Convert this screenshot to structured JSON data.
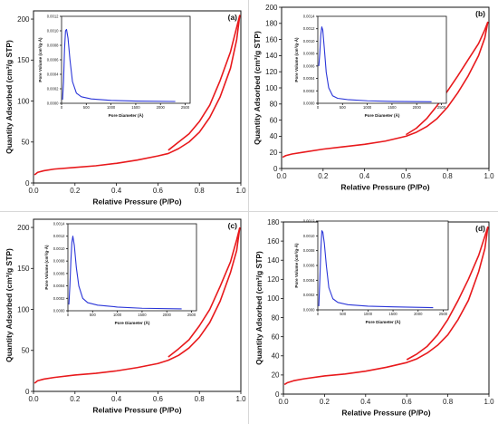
{
  "figure": {
    "panels": [
      {
        "id": "a"
      },
      {
        "id": "b"
      },
      {
        "id": "c"
      },
      {
        "id": "d"
      }
    ]
  },
  "colors": {
    "isotherm": "#e8191c",
    "psd": "#2a35d8",
    "axis": "#111111",
    "divider": "#d8d8d8"
  },
  "chart_data": [
    {
      "panel_label": "(a)",
      "type": "line",
      "xlabel": "Relative Pressure (P/Po)",
      "ylabel": "Quantity Adsorbed (cm³/g STP)",
      "xlim": [
        0,
        1.0
      ],
      "ylim": [
        0,
        210
      ],
      "xticks": [
        "0.0",
        "0.2",
        "0.4",
        "0.6",
        "0.8",
        "1.0"
      ],
      "yticks": [
        "0",
        "50",
        "100",
        "150",
        "200"
      ],
      "xtick_values": [
        0,
        0.2,
        0.4,
        0.6,
        0.8,
        1.0
      ],
      "ytick_values": [
        0,
        50,
        100,
        150,
        200
      ],
      "series": [
        {
          "values": [
            [
              0.005,
              10
            ],
            [
              0.02,
              13
            ],
            [
              0.05,
              15
            ],
            [
              0.1,
              17
            ],
            [
              0.2,
              19
            ],
            [
              0.3,
              21
            ],
            [
              0.4,
              24
            ],
            [
              0.5,
              28
            ],
            [
              0.6,
              33
            ],
            [
              0.65,
              36
            ],
            [
              0.7,
              42
            ],
            [
              0.75,
              50
            ],
            [
              0.8,
              62
            ],
            [
              0.85,
              80
            ],
            [
              0.9,
              105
            ],
            [
              0.95,
              140
            ],
            [
              0.98,
              175
            ],
            [
              0.995,
              205
            ]
          ]
        },
        {
          "values": [
            [
              0.995,
              205
            ],
            [
              0.98,
              190
            ],
            [
              0.95,
              160
            ],
            [
              0.9,
              125
            ],
            [
              0.85,
              95
            ],
            [
              0.8,
              75
            ],
            [
              0.75,
              60
            ],
            [
              0.7,
              50
            ],
            [
              0.65,
              40
            ]
          ]
        }
      ],
      "inset": {
        "type": "line",
        "xlabel": "Pore Diameter (Å)",
        "ylabel": "Pore Volume (cm³/g·Å)",
        "xlim": [
          0,
          2600
        ],
        "ylim": [
          0,
          0.0012
        ],
        "xticks": [
          "0",
          "500",
          "1000",
          "1500",
          "2000",
          "2500"
        ],
        "yticks": [
          "0.0000",
          "0.0002",
          "0.0004",
          "0.0006",
          "0.0008",
          "0.0010",
          "0.0012"
        ],
        "xtick_values": [
          0,
          500,
          1000,
          1500,
          2000,
          2500
        ],
        "ytick_values": [
          0,
          0.0002,
          0.0004,
          0.0006,
          0.0008,
          0.001,
          0.0012
        ],
        "series": [
          {
            "values": [
              [
                20,
                5e-05
              ],
              [
                40,
                0.0003
              ],
              [
                60,
                0.00075
              ],
              [
                80,
                0.001
              ],
              [
                100,
                0.00102
              ],
              [
                130,
                0.0009
              ],
              [
                170,
                0.0006
              ],
              [
                220,
                0.0003
              ],
              [
                300,
                0.00014
              ],
              [
                400,
                9e-05
              ],
              [
                600,
                6e-05
              ],
              [
                1000,
                4e-05
              ],
              [
                1500,
                3e-05
              ],
              [
                2300,
                2.5e-05
              ]
            ]
          }
        ]
      }
    },
    {
      "panel_label": "(b)",
      "type": "line",
      "xlabel": "Relative Pressure (P/Po)",
      "ylabel": "Quantity Adsorbed (cm³/g STP)",
      "xlim": [
        0,
        1.0
      ],
      "ylim": [
        0,
        200
      ],
      "xticks": [
        "0.0",
        "0.2",
        "0.4",
        "0.6",
        "0.8",
        "1.0"
      ],
      "yticks": [
        "0",
        "20",
        "40",
        "60",
        "80",
        "100",
        "120",
        "140",
        "160",
        "180",
        "200"
      ],
      "xtick_values": [
        0,
        0.2,
        0.4,
        0.6,
        0.8,
        1.0
      ],
      "ytick_values": [
        0,
        20,
        40,
        60,
        80,
        100,
        120,
        140,
        160,
        180,
        200
      ],
      "series": [
        {
          "values": [
            [
              0.005,
              14
            ],
            [
              0.02,
              16
            ],
            [
              0.05,
              18
            ],
            [
              0.1,
              20
            ],
            [
              0.2,
              24
            ],
            [
              0.3,
              27
            ],
            [
              0.4,
              30
            ],
            [
              0.5,
              34
            ],
            [
              0.6,
              40
            ],
            [
              0.65,
              45
            ],
            [
              0.7,
              52
            ],
            [
              0.75,
              62
            ],
            [
              0.8,
              76
            ],
            [
              0.85,
              94
            ],
            [
              0.9,
              115
            ],
            [
              0.95,
              140
            ],
            [
              0.98,
              162
            ],
            [
              0.995,
              182
            ]
          ]
        },
        {
          "values": [
            [
              0.995,
              182
            ],
            [
              0.98,
              172
            ],
            [
              0.95,
              155
            ],
            [
              0.9,
              135
            ],
            [
              0.85,
              115
            ],
            [
              0.8,
              96
            ],
            [
              0.75,
              78
            ],
            [
              0.7,
              62
            ],
            [
              0.65,
              50
            ],
            [
              0.6,
              42
            ]
          ]
        }
      ],
      "inset": {
        "type": "line",
        "xlabel": "Pore Diameter (Å)",
        "ylabel": "Pore Volume (cm³/g·Å)",
        "xlim": [
          0,
          2600
        ],
        "ylim": [
          0,
          0.0014
        ],
        "xticks": [
          "0",
          "500",
          "1000",
          "1500",
          "2000",
          "2500"
        ],
        "yticks": [
          "0.0000",
          "0.0002",
          "0.0004",
          "0.0006",
          "0.0008",
          "0.0010",
          "0.0012",
          "0.0014"
        ],
        "xtick_values": [
          0,
          500,
          1000,
          1500,
          2000,
          2500
        ],
        "ytick_values": [
          0,
          0.0002,
          0.0004,
          0.0006,
          0.0008,
          0.001,
          0.0012,
          0.0014
        ],
        "series": [
          {
            "values": [
              [
                20,
                0.0006
              ],
              [
                40,
                0.0008
              ],
              [
                60,
                0.0011
              ],
              [
                80,
                0.00123
              ],
              [
                100,
                0.00118
              ],
              [
                130,
                0.0009
              ],
              [
                170,
                0.0005
              ],
              [
                220,
                0.00025
              ],
              [
                300,
                0.00012
              ],
              [
                400,
                8e-05
              ],
              [
                600,
                6e-05
              ],
              [
                1000,
                4e-05
              ],
              [
                1500,
                3e-05
              ],
              [
                2300,
                2.5e-05
              ]
            ]
          }
        ]
      }
    },
    {
      "panel_label": "(c)",
      "type": "line",
      "xlabel": "Relative Pressure (P/Po)",
      "ylabel": "Quantity Adsorbed (cm³/g STP)",
      "xlim": [
        0,
        1.0
      ],
      "ylim": [
        0,
        210
      ],
      "xticks": [
        "0.0",
        "0.2",
        "0.4",
        "0.6",
        "0.8",
        "1.0"
      ],
      "yticks": [
        "0",
        "50",
        "100",
        "150",
        "200"
      ],
      "xtick_values": [
        0,
        0.2,
        0.4,
        0.6,
        0.8,
        1.0
      ],
      "ytick_values": [
        0,
        50,
        100,
        150,
        200
      ],
      "series": [
        {
          "values": [
            [
              0.005,
              10
            ],
            [
              0.02,
              13
            ],
            [
              0.05,
              15
            ],
            [
              0.1,
              17
            ],
            [
              0.2,
              20
            ],
            [
              0.3,
              22
            ],
            [
              0.4,
              25
            ],
            [
              0.5,
              29
            ],
            [
              0.6,
              34
            ],
            [
              0.65,
              38
            ],
            [
              0.7,
              44
            ],
            [
              0.75,
              53
            ],
            [
              0.8,
              66
            ],
            [
              0.85,
              84
            ],
            [
              0.9,
              110
            ],
            [
              0.95,
              145
            ],
            [
              0.98,
              172
            ],
            [
              0.995,
              200
            ]
          ]
        },
        {
          "values": [
            [
              0.995,
              200
            ],
            [
              0.98,
              185
            ],
            [
              0.95,
              158
            ],
            [
              0.9,
              128
            ],
            [
              0.85,
              100
            ],
            [
              0.8,
              80
            ],
            [
              0.75,
              63
            ],
            [
              0.7,
              52
            ],
            [
              0.65,
              42
            ]
          ]
        }
      ],
      "inset": {
        "type": "line",
        "xlabel": "Pore Diameter (Å)",
        "ylabel": "Pore Volume (cm³/g·Å)",
        "xlim": [
          0,
          2600
        ],
        "ylim": [
          0,
          0.0014
        ],
        "xticks": [
          "0",
          "500",
          "1000",
          "1500",
          "2000",
          "2500"
        ],
        "yticks": [
          "0.0000",
          "0.0002",
          "0.0004",
          "0.0006",
          "0.0008",
          "0.0010",
          "0.0012",
          "0.0014"
        ],
        "xtick_values": [
          0,
          500,
          1000,
          1500,
          2000,
          2500
        ],
        "ytick_values": [
          0,
          0.0002,
          0.0004,
          0.0006,
          0.0008,
          0.001,
          0.0012,
          0.0014
        ],
        "series": [
          {
            "values": [
              [
                20,
                0.0001
              ],
              [
                40,
                0.0004
              ],
              [
                60,
                0.0008
              ],
              [
                80,
                0.0011
              ],
              [
                100,
                0.0012
              ],
              [
                130,
                0.00105
              ],
              [
                170,
                0.0007
              ],
              [
                220,
                0.0004
              ],
              [
                300,
                0.0002
              ],
              [
                400,
                0.00013
              ],
              [
                600,
                9e-05
              ],
              [
                1000,
                6e-05
              ],
              [
                1500,
                4e-05
              ],
              [
                2300,
                3e-05
              ]
            ]
          }
        ]
      }
    },
    {
      "panel_label": "(d)",
      "type": "line",
      "xlabel": "Relative Pressure (P/Po)",
      "ylabel": "Quantity Adsorbed (cm³/g STP)",
      "xlim": [
        0,
        1.0
      ],
      "ylim": [
        0,
        180
      ],
      "xticks": [
        "0.0",
        "0.2",
        "0.4",
        "0.6",
        "0.8",
        "1.0"
      ],
      "yticks": [
        "0",
        "20",
        "40",
        "60",
        "80",
        "100",
        "120",
        "140",
        "160",
        "180"
      ],
      "xtick_values": [
        0,
        0.2,
        0.4,
        0.6,
        0.8,
        1.0
      ],
      "ytick_values": [
        0,
        20,
        40,
        60,
        80,
        100,
        120,
        140,
        160,
        180
      ],
      "series": [
        {
          "values": [
            [
              0.005,
              10
            ],
            [
              0.02,
              12
            ],
            [
              0.05,
              14
            ],
            [
              0.1,
              16
            ],
            [
              0.2,
              19
            ],
            [
              0.3,
              21
            ],
            [
              0.4,
              24
            ],
            [
              0.5,
              28
            ],
            [
              0.6,
              33
            ],
            [
              0.65,
              37
            ],
            [
              0.7,
              43
            ],
            [
              0.75,
              51
            ],
            [
              0.8,
              62
            ],
            [
              0.85,
              78
            ],
            [
              0.9,
              98
            ],
            [
              0.95,
              128
            ],
            [
              0.98,
              152
            ],
            [
              0.995,
              175
            ]
          ]
        },
        {
          "values": [
            [
              0.995,
              175
            ],
            [
              0.98,
              165
            ],
            [
              0.95,
              145
            ],
            [
              0.9,
              120
            ],
            [
              0.85,
              98
            ],
            [
              0.8,
              78
            ],
            [
              0.75,
              62
            ],
            [
              0.7,
              50
            ],
            [
              0.65,
              42
            ],
            [
              0.6,
              36
            ]
          ]
        }
      ],
      "inset": {
        "type": "line",
        "xlabel": "Pore Diameter (Å)",
        "ylabel": "Pore Volume (cm³/g·Å)",
        "xlim": [
          0,
          2600
        ],
        "ylim": [
          0,
          0.0012
        ],
        "xticks": [
          "0",
          "500",
          "1000",
          "1500",
          "2000",
          "2500"
        ],
        "yticks": [
          "0.0000",
          "0.0002",
          "0.0004",
          "0.0006",
          "0.0008",
          "0.0010",
          "0.0012"
        ],
        "xtick_values": [
          0,
          500,
          1000,
          1500,
          2000,
          2500
        ],
        "ytick_values": [
          0,
          0.0002,
          0.0004,
          0.0006,
          0.0008,
          0.001,
          0.0012
        ],
        "series": [
          {
            "values": [
              [
                20,
                5e-05
              ],
              [
                40,
                0.0004
              ],
              [
                60,
                0.0008
              ],
              [
                80,
                0.00107
              ],
              [
                100,
                0.00105
              ],
              [
                130,
                0.0009
              ],
              [
                170,
                0.0006
              ],
              [
                220,
                0.0003
              ],
              [
                300,
                0.00015
              ],
              [
                400,
                0.0001
              ],
              [
                600,
                7e-05
              ],
              [
                1000,
                5e-05
              ],
              [
                1500,
                4e-05
              ],
              [
                2300,
                3e-05
              ]
            ]
          }
        ]
      }
    }
  ]
}
